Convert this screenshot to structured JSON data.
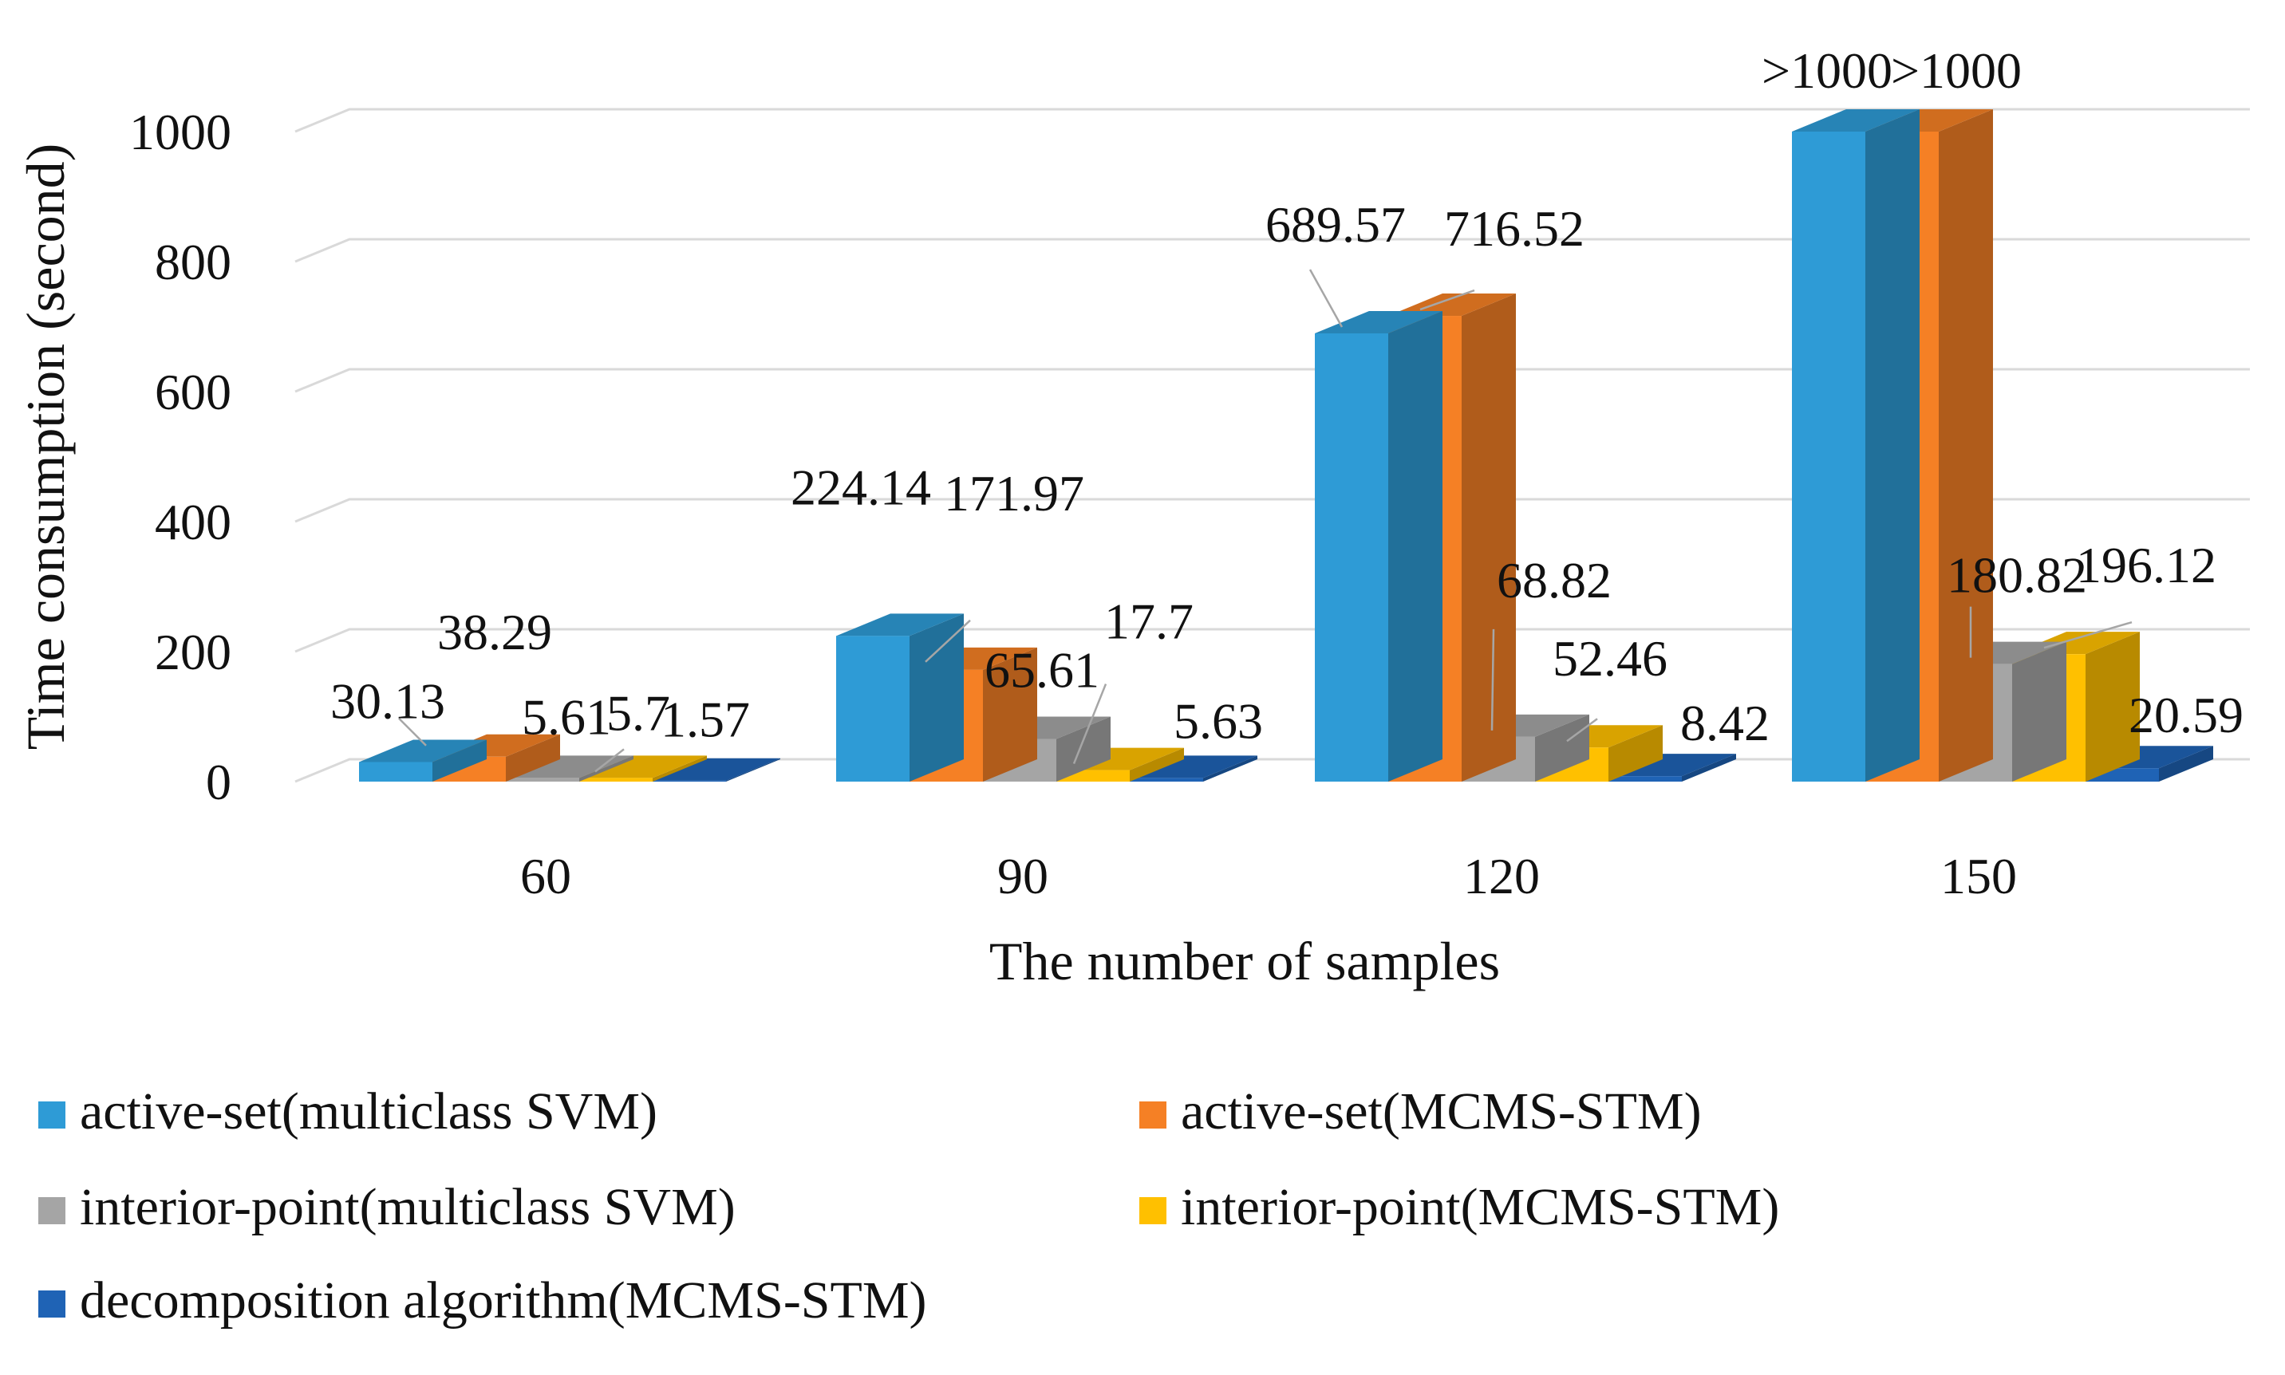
{
  "chart_data": {
    "type": "bar",
    "style": "3d-clustered-column",
    "categories": [
      "60",
      "90",
      "120",
      "150"
    ],
    "series": [
      {
        "name": "active-set(multiclass SVM)",
        "color": "#2E9BD6",
        "values": [
          30.13,
          224.14,
          689.57,
          1000
        ],
        "labels": [
          "30.13",
          "224.14",
          "689.57",
          ">1000"
        ]
      },
      {
        "name": "active-set(MCMS-STM)",
        "color": "#F58025",
        "values": [
          38.29,
          171.97,
          716.52,
          1000
        ],
        "labels": [
          "38.29",
          "171.97",
          "716.52",
          ">1000"
        ]
      },
      {
        "name": "interior-point(multiclass SVM)",
        "color": "#A5A5A5",
        "values": [
          5.61,
          65.61,
          68.82,
          180.82
        ],
        "labels": [
          "5.61",
          "65.61",
          "68.82",
          "180.82"
        ]
      },
      {
        "name": "interior-point(MCMS-STM)",
        "color": "#FFC000",
        "values": [
          5.7,
          17.7,
          52.46,
          196.12
        ],
        "labels": [
          "5.7",
          "17.7",
          "52.46",
          "196.12"
        ]
      },
      {
        "name": "decomposition algorithm(MCMS-STM)",
        "color": "#1F63B5",
        "values": [
          1.57,
          5.63,
          8.42,
          20.59
        ],
        "labels": [
          "1.57",
          "5.63",
          "8.42",
          "20.59"
        ]
      }
    ],
    "title": "",
    "xlabel": "The number of samples",
    "ylabel": "Time consumption (second)",
    "ylim": [
      0,
      1000
    ],
    "yticks": [
      "0",
      "200",
      "400",
      "600",
      "800",
      "1000"
    ],
    "grid": true,
    "legend_position": "bottom"
  }
}
